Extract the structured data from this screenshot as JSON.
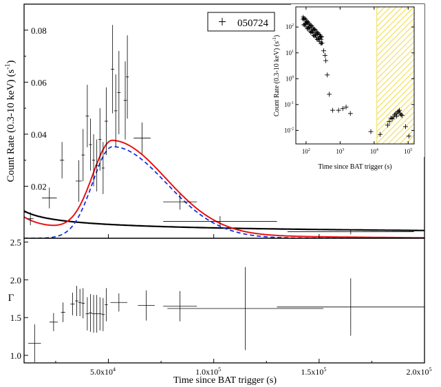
{
  "chart_data": [
    {
      "id": "top",
      "type": "scatter",
      "ylabel": "Count Rate (0.3-10 keV) (s",
      "ylabel_sup": "-1",
      "ylabel_tail": ")",
      "xlim": [
        10000,
        200000
      ],
      "ylim": [
        0.0,
        0.09
      ],
      "yticks": [
        0.02,
        0.04,
        0.06,
        0.08
      ],
      "ytick_labels": [
        "0.02",
        "0.04",
        "0.06",
        "0.08"
      ],
      "legend": {
        "label": "050724",
        "position": "top-right"
      },
      "points": [
        {
          "x": 13000,
          "y": 0.0075,
          "xerr": 1500,
          "yerr": 0.0025
        },
        {
          "x": 22000,
          "y": 0.0155,
          "xerr": 3500,
          "yerr": 0.004
        },
        {
          "x": 28000,
          "y": 0.03,
          "xerr": 1000,
          "yerr": 0.007
        },
        {
          "x": 36000,
          "y": 0.022,
          "xerr": 1500,
          "yerr": 0.008
        },
        {
          "x": 38000,
          "y": 0.032,
          "xerr": 800,
          "yerr": 0.01
        },
        {
          "x": 40000,
          "y": 0.047,
          "xerr": 800,
          "yerr": 0.012
        },
        {
          "x": 41500,
          "y": 0.036,
          "xerr": 700,
          "yerr": 0.01
        },
        {
          "x": 43000,
          "y": 0.03,
          "xerr": 700,
          "yerr": 0.01
        },
        {
          "x": 44500,
          "y": 0.028,
          "xerr": 700,
          "yerr": 0.01
        },
        {
          "x": 46000,
          "y": 0.038,
          "xerr": 700,
          "yerr": 0.012
        },
        {
          "x": 47500,
          "y": 0.027,
          "xerr": 700,
          "yerr": 0.01
        },
        {
          "x": 49000,
          "y": 0.045,
          "xerr": 800,
          "yerr": 0.013
        },
        {
          "x": 52000,
          "y": 0.065,
          "xerr": 800,
          "yerr": 0.017
        },
        {
          "x": 53500,
          "y": 0.049,
          "xerr": 800,
          "yerr": 0.014
        },
        {
          "x": 55000,
          "y": 0.056,
          "xerr": 800,
          "yerr": 0.016
        },
        {
          "x": 58000,
          "y": 0.053,
          "xerr": 800,
          "yerr": 0.015
        },
        {
          "x": 59000,
          "y": 0.062,
          "xerr": 700,
          "yerr": 0.016
        },
        {
          "x": 66000,
          "y": 0.0385,
          "xerr": 4000,
          "yerr": 0.006
        },
        {
          "x": 84000,
          "y": 0.014,
          "xerr": 8000,
          "yerr": 0.003
        },
        {
          "x": 103000,
          "y": 0.0065,
          "xerr": 27000,
          "yerr": 0.002
        },
        {
          "x": 165000,
          "y": 0.0025,
          "xerr": 30000,
          "yerr": 0.001
        }
      ],
      "curves": [
        {
          "style": "red-solid",
          "color": "#e81010"
        },
        {
          "style": "blue-dashed",
          "color": "#1530e0"
        },
        {
          "style": "black-solid",
          "color": "#000000"
        }
      ]
    },
    {
      "id": "bottom",
      "type": "scatter",
      "xlabel": "Time since BAT trigger (s)",
      "ylabel": "Γ",
      "xlim": [
        10000,
        200000
      ],
      "ylim": [
        0.9,
        2.55
      ],
      "xticks": [
        50000,
        100000,
        150000,
        200000
      ],
      "xtick_labels": [
        "5.0x10",
        "1.0x10",
        "1.5x10",
        "2.0x10"
      ],
      "xtick_sup": "4",
      "xtick_sups": [
        "4",
        "5",
        "5",
        "5"
      ],
      "yticks": [
        1.0,
        1.5,
        2.0,
        2.5
      ],
      "ytick_labels": [
        "1.0",
        "1.5",
        "2.0",
        "2.5"
      ],
      "points": [
        {
          "x": 15000,
          "y": 1.16,
          "xerr": 3000,
          "yerr": 0.25
        },
        {
          "x": 24000,
          "y": 1.44,
          "xerr": 2000,
          "yerr": 0.12
        },
        {
          "x": 28500,
          "y": 1.57,
          "xerr": 1000,
          "yerr": 0.13
        },
        {
          "x": 33000,
          "y": 1.68,
          "xerr": 1000,
          "yerr": 0.15
        },
        {
          "x": 35000,
          "y": 1.72,
          "xerr": 800,
          "yerr": 0.2
        },
        {
          "x": 36500,
          "y": 1.7,
          "xerr": 800,
          "yerr": 0.18
        },
        {
          "x": 38000,
          "y": 1.69,
          "xerr": 800,
          "yerr": 0.2
        },
        {
          "x": 40000,
          "y": 1.55,
          "xerr": 800,
          "yerr": 0.22
        },
        {
          "x": 41500,
          "y": 1.56,
          "xerr": 800,
          "yerr": 0.25
        },
        {
          "x": 43000,
          "y": 1.55,
          "xerr": 800,
          "yerr": 0.25
        },
        {
          "x": 44500,
          "y": 1.55,
          "xerr": 800,
          "yerr": 0.25
        },
        {
          "x": 46000,
          "y": 1.55,
          "xerr": 800,
          "yerr": 0.22
        },
        {
          "x": 47500,
          "y": 1.54,
          "xerr": 800,
          "yerr": 0.22
        },
        {
          "x": 49000,
          "y": 1.67,
          "xerr": 700,
          "yerr": 0.22
        },
        {
          "x": 55000,
          "y": 1.7,
          "xerr": 4000,
          "yerr": 0.12
        },
        {
          "x": 68000,
          "y": 1.66,
          "xerr": 4000,
          "yerr": 0.2
        },
        {
          "x": 84000,
          "y": 1.65,
          "xerr": 8000,
          "yerr": 0.2
        },
        {
          "x": 115000,
          "y": 1.62,
          "xerr": 37000,
          "yerr": 0.55
        },
        {
          "x": 165000,
          "y": 1.64,
          "xerr": 35000,
          "yerr": 0.38
        }
      ]
    },
    {
      "id": "inset",
      "type": "scatter",
      "xscale": "log",
      "yscale": "log",
      "xlabel": "Time since BAT trigger (s)",
      "ylabel": "Count Rate (0.3-10 keV) (s",
      "ylabel_sup": "-1",
      "ylabel_tail": ")",
      "xlim": [
        50,
        150000
      ],
      "ylim": [
        0.003,
        600
      ],
      "xticks": [
        100,
        1000,
        10000,
        100000
      ],
      "xtick_base": "10",
      "xtick_exps": [
        "2",
        "3",
        "4",
        "5"
      ],
      "yticks": [
        0.01,
        0.1,
        1,
        10,
        100
      ],
      "ytick_base": "10",
      "ytick_exps": [
        "-2",
        "-1",
        "0",
        "1",
        "2"
      ],
      "shaded_region": [
        12000,
        150000
      ],
      "shade_color": "#f2e35a",
      "points_early": {
        "t_start": 80,
        "t_end": 300,
        "r_start": 200,
        "r_end": 30
      },
      "points": [
        {
          "x": 330,
          "y": 12
        },
        {
          "x": 360,
          "y": 8
        },
        {
          "x": 380,
          "y": 5
        },
        {
          "x": 420,
          "y": 1.4
        },
        {
          "x": 480,
          "y": 0.25
        },
        {
          "x": 600,
          "y": 0.06
        },
        {
          "x": 900,
          "y": 0.06
        },
        {
          "x": 1200,
          "y": 0.07
        },
        {
          "x": 1500,
          "y": 0.08
        },
        {
          "x": 2000,
          "y": 0.045
        },
        {
          "x": 8000,
          "y": 0.009
        },
        {
          "x": 15000,
          "y": 0.007
        },
        {
          "x": 25000,
          "y": 0.016
        },
        {
          "x": 28000,
          "y": 0.022
        },
        {
          "x": 31000,
          "y": 0.03
        },
        {
          "x": 34000,
          "y": 0.028
        },
        {
          "x": 37000,
          "y": 0.033
        },
        {
          "x": 40000,
          "y": 0.04
        },
        {
          "x": 43000,
          "y": 0.045
        },
        {
          "x": 46000,
          "y": 0.036
        },
        {
          "x": 49000,
          "y": 0.05
        },
        {
          "x": 52000,
          "y": 0.055
        },
        {
          "x": 55000,
          "y": 0.06
        },
        {
          "x": 58000,
          "y": 0.045
        },
        {
          "x": 62000,
          "y": 0.04
        },
        {
          "x": 66000,
          "y": 0.038
        },
        {
          "x": 84000,
          "y": 0.014
        },
        {
          "x": 105000,
          "y": 0.006
        }
      ]
    }
  ]
}
